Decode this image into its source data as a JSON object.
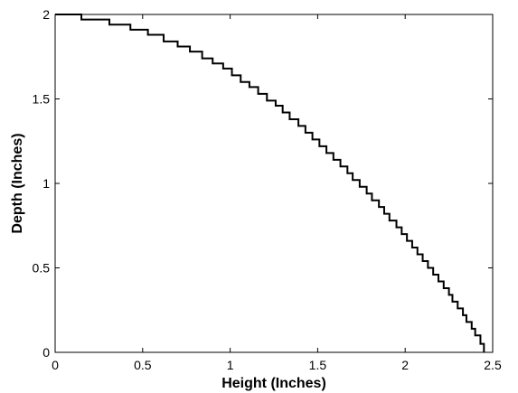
{
  "chart_data": {
    "type": "line",
    "title": "",
    "xlabel": "Height (Inches)",
    "ylabel": "Depth (Inches)",
    "xlim": [
      0,
      2.5
    ],
    "ylim": [
      0,
      2
    ],
    "xticks": [
      0,
      0.5,
      1,
      1.5,
      2,
      2.5
    ],
    "yticks": [
      0,
      0.5,
      1,
      1.5,
      2
    ],
    "xtick_labels": [
      "0",
      "0.5",
      "1",
      "1.5",
      "2",
      "2.5"
    ],
    "ytick_labels": [
      "0",
      "0.5",
      "1",
      "1.5",
      "2"
    ],
    "grid": false,
    "legend": "none",
    "line_style": "step",
    "line_color": "#000000",
    "series": [
      {
        "x": [
          0,
          0.15,
          0.31,
          0.43,
          0.53,
          0.62,
          0.7,
          0.77,
          0.84,
          0.9,
          0.96,
          1.01,
          1.06,
          1.11,
          1.16,
          1.21,
          1.26,
          1.3,
          1.34,
          1.39,
          1.43,
          1.47,
          1.51,
          1.55,
          1.59,
          1.63,
          1.67,
          1.7,
          1.74,
          1.78,
          1.81,
          1.85,
          1.88,
          1.91,
          1.95,
          1.98,
          2.01,
          2.04,
          2.07,
          2.1,
          2.13,
          2.16,
          2.19,
          2.22,
          2.25,
          2.27,
          2.3,
          2.33,
          2.35,
          2.38,
          2.4,
          2.43,
          2.45
        ],
        "y": [
          2.0,
          1.97,
          1.94,
          1.91,
          1.88,
          1.84,
          1.81,
          1.78,
          1.74,
          1.71,
          1.68,
          1.64,
          1.6,
          1.57,
          1.53,
          1.49,
          1.46,
          1.42,
          1.38,
          1.34,
          1.3,
          1.26,
          1.22,
          1.18,
          1.14,
          1.1,
          1.06,
          1.02,
          0.98,
          0.94,
          0.9,
          0.86,
          0.82,
          0.78,
          0.74,
          0.7,
          0.66,
          0.62,
          0.58,
          0.54,
          0.5,
          0.46,
          0.42,
          0.38,
          0.34,
          0.3,
          0.26,
          0.22,
          0.18,
          0.14,
          0.1,
          0.05,
          0.0
        ]
      }
    ]
  }
}
